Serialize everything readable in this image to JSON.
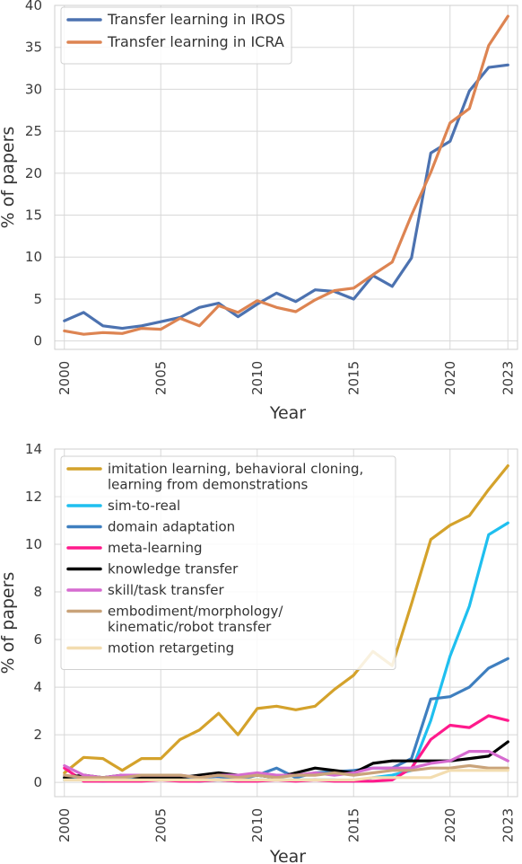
{
  "chart_data": [
    {
      "type": "line",
      "title": "",
      "xlabel": "Year",
      "ylabel": "% of papers",
      "xlim": [
        1999.5,
        2023.5
      ],
      "ylim": [
        -1,
        40
      ],
      "xticks": [
        2000,
        2005,
        2010,
        2015,
        2020,
        2023
      ],
      "yticks": [
        0,
        5,
        10,
        15,
        20,
        25,
        30,
        35,
        40
      ],
      "legend_position": "top-left",
      "grid": true,
      "x": [
        2000,
        2001,
        2002,
        2003,
        2004,
        2005,
        2006,
        2007,
        2008,
        2009,
        2010,
        2011,
        2012,
        2013,
        2014,
        2015,
        2016,
        2017,
        2018,
        2019,
        2020,
        2021,
        2022,
        2023
      ],
      "series": [
        {
          "name": "Transfer learning in IROS",
          "color": "#4c72b0",
          "values": [
            2.4,
            3.4,
            1.8,
            1.5,
            1.8,
            2.3,
            2.8,
            4.0,
            4.5,
            2.9,
            4.4,
            5.7,
            4.7,
            6.1,
            5.9,
            5.0,
            7.8,
            6.5,
            9.9,
            22.4,
            23.8,
            29.8,
            32.6,
            32.9
          ]
        },
        {
          "name": "Transfer learning in ICRA",
          "color": "#dd8452",
          "values": [
            1.2,
            0.8,
            1.0,
            0.9,
            1.5,
            1.4,
            2.7,
            1.8,
            4.2,
            3.4,
            4.8,
            4.0,
            3.5,
            4.9,
            6.0,
            6.3,
            7.9,
            9.4,
            15.0,
            20.1,
            26.0,
            27.7,
            35.2,
            38.7
          ]
        }
      ]
    },
    {
      "type": "line",
      "title": "",
      "xlabel": "Year",
      "ylabel": "% of papers",
      "xlim": [
        1999.5,
        2023.5
      ],
      "ylim": [
        -0.6,
        14
      ],
      "xticks": [
        2000,
        2005,
        2010,
        2015,
        2020,
        2023
      ],
      "yticks": [
        0,
        2,
        4,
        6,
        8,
        10,
        12,
        14
      ],
      "legend_position": "top-left",
      "grid": true,
      "x": [
        2000,
        2001,
        2002,
        2003,
        2004,
        2005,
        2006,
        2007,
        2008,
        2009,
        2010,
        2011,
        2012,
        2013,
        2014,
        2015,
        2016,
        2017,
        2018,
        2019,
        2020,
        2021,
        2022,
        2023
      ],
      "series": [
        {
          "name": "imitation learning, behavioral cloning, learning from demonstrations",
          "label_lines": [
            "imitation learning, behavioral cloning,",
            "learning from demonstrations"
          ],
          "color": "#d4a22b",
          "values": [
            0.4,
            1.05,
            1.0,
            0.5,
            1.0,
            1.0,
            1.8,
            2.2,
            2.9,
            2.0,
            3.1,
            3.2,
            3.05,
            3.2,
            3.9,
            4.5,
            5.5,
            4.9,
            7.5,
            10.2,
            10.8,
            11.2,
            12.3,
            13.3
          ]
        },
        {
          "name": "sim-to-real",
          "color": "#1fbfef",
          "values": [
            0.1,
            0.1,
            0.05,
            0.1,
            0.15,
            0.1,
            0.1,
            0.05,
            0.1,
            0.05,
            0.1,
            0.1,
            0.1,
            0.1,
            0.1,
            0.05,
            0.2,
            0.3,
            0.5,
            2.6,
            5.3,
            7.4,
            10.4,
            10.9
          ]
        },
        {
          "name": "domain adaptation",
          "color": "#3f7fbf",
          "values": [
            0.2,
            0.15,
            0.1,
            0.1,
            0.15,
            0.2,
            0.15,
            0.2,
            0.25,
            0.1,
            0.3,
            0.6,
            0.2,
            0.4,
            0.45,
            0.5,
            0.6,
            0.6,
            1.0,
            3.5,
            3.6,
            4.0,
            4.8,
            5.2
          ]
        },
        {
          "name": "meta-learning",
          "color": "#ff1a8c",
          "values": [
            0.6,
            0.05,
            0.05,
            0.05,
            0.05,
            0.1,
            0.05,
            0.05,
            0.1,
            0.05,
            0.05,
            0.1,
            0.05,
            0.1,
            0.05,
            0.05,
            0.05,
            0.1,
            0.6,
            1.8,
            2.4,
            2.3,
            2.8,
            2.6
          ]
        },
        {
          "name": "knowledge transfer",
          "color": "#000000",
          "values": [
            0.2,
            0.3,
            0.2,
            0.3,
            0.2,
            0.2,
            0.2,
            0.3,
            0.4,
            0.3,
            0.3,
            0.2,
            0.4,
            0.6,
            0.5,
            0.4,
            0.8,
            0.9,
            0.9,
            0.9,
            0.9,
            1.0,
            1.1,
            1.7
          ]
        },
        {
          "name": "skill/task transfer",
          "color": "#d66bd0",
          "values": [
            0.7,
            0.3,
            0.2,
            0.3,
            0.3,
            0.3,
            0.3,
            0.2,
            0.3,
            0.3,
            0.4,
            0.3,
            0.3,
            0.4,
            0.3,
            0.4,
            0.6,
            0.6,
            0.6,
            0.8,
            0.9,
            1.3,
            1.3,
            0.9
          ]
        },
        {
          "name": "embodiment/morphology/kinematic/robot transfer",
          "label_lines": [
            "embodiment/morphology/",
            "kinematic/robot transfer"
          ],
          "color": "#c9a37a",
          "values": [
            0.3,
            0.2,
            0.2,
            0.2,
            0.3,
            0.3,
            0.3,
            0.2,
            0.3,
            0.2,
            0.3,
            0.2,
            0.3,
            0.3,
            0.4,
            0.3,
            0.4,
            0.5,
            0.5,
            0.6,
            0.6,
            0.7,
            0.6,
            0.6
          ]
        },
        {
          "name": "motion retargeting",
          "color": "#f3ddb0",
          "values": [
            0.1,
            0.1,
            0.1,
            0.1,
            0.1,
            0.1,
            0.1,
            0.1,
            0.1,
            0.1,
            0.1,
            0.1,
            0.1,
            0.1,
            0.1,
            0.1,
            0.2,
            0.2,
            0.2,
            0.2,
            0.5,
            0.5,
            0.5,
            0.5
          ]
        }
      ]
    }
  ]
}
